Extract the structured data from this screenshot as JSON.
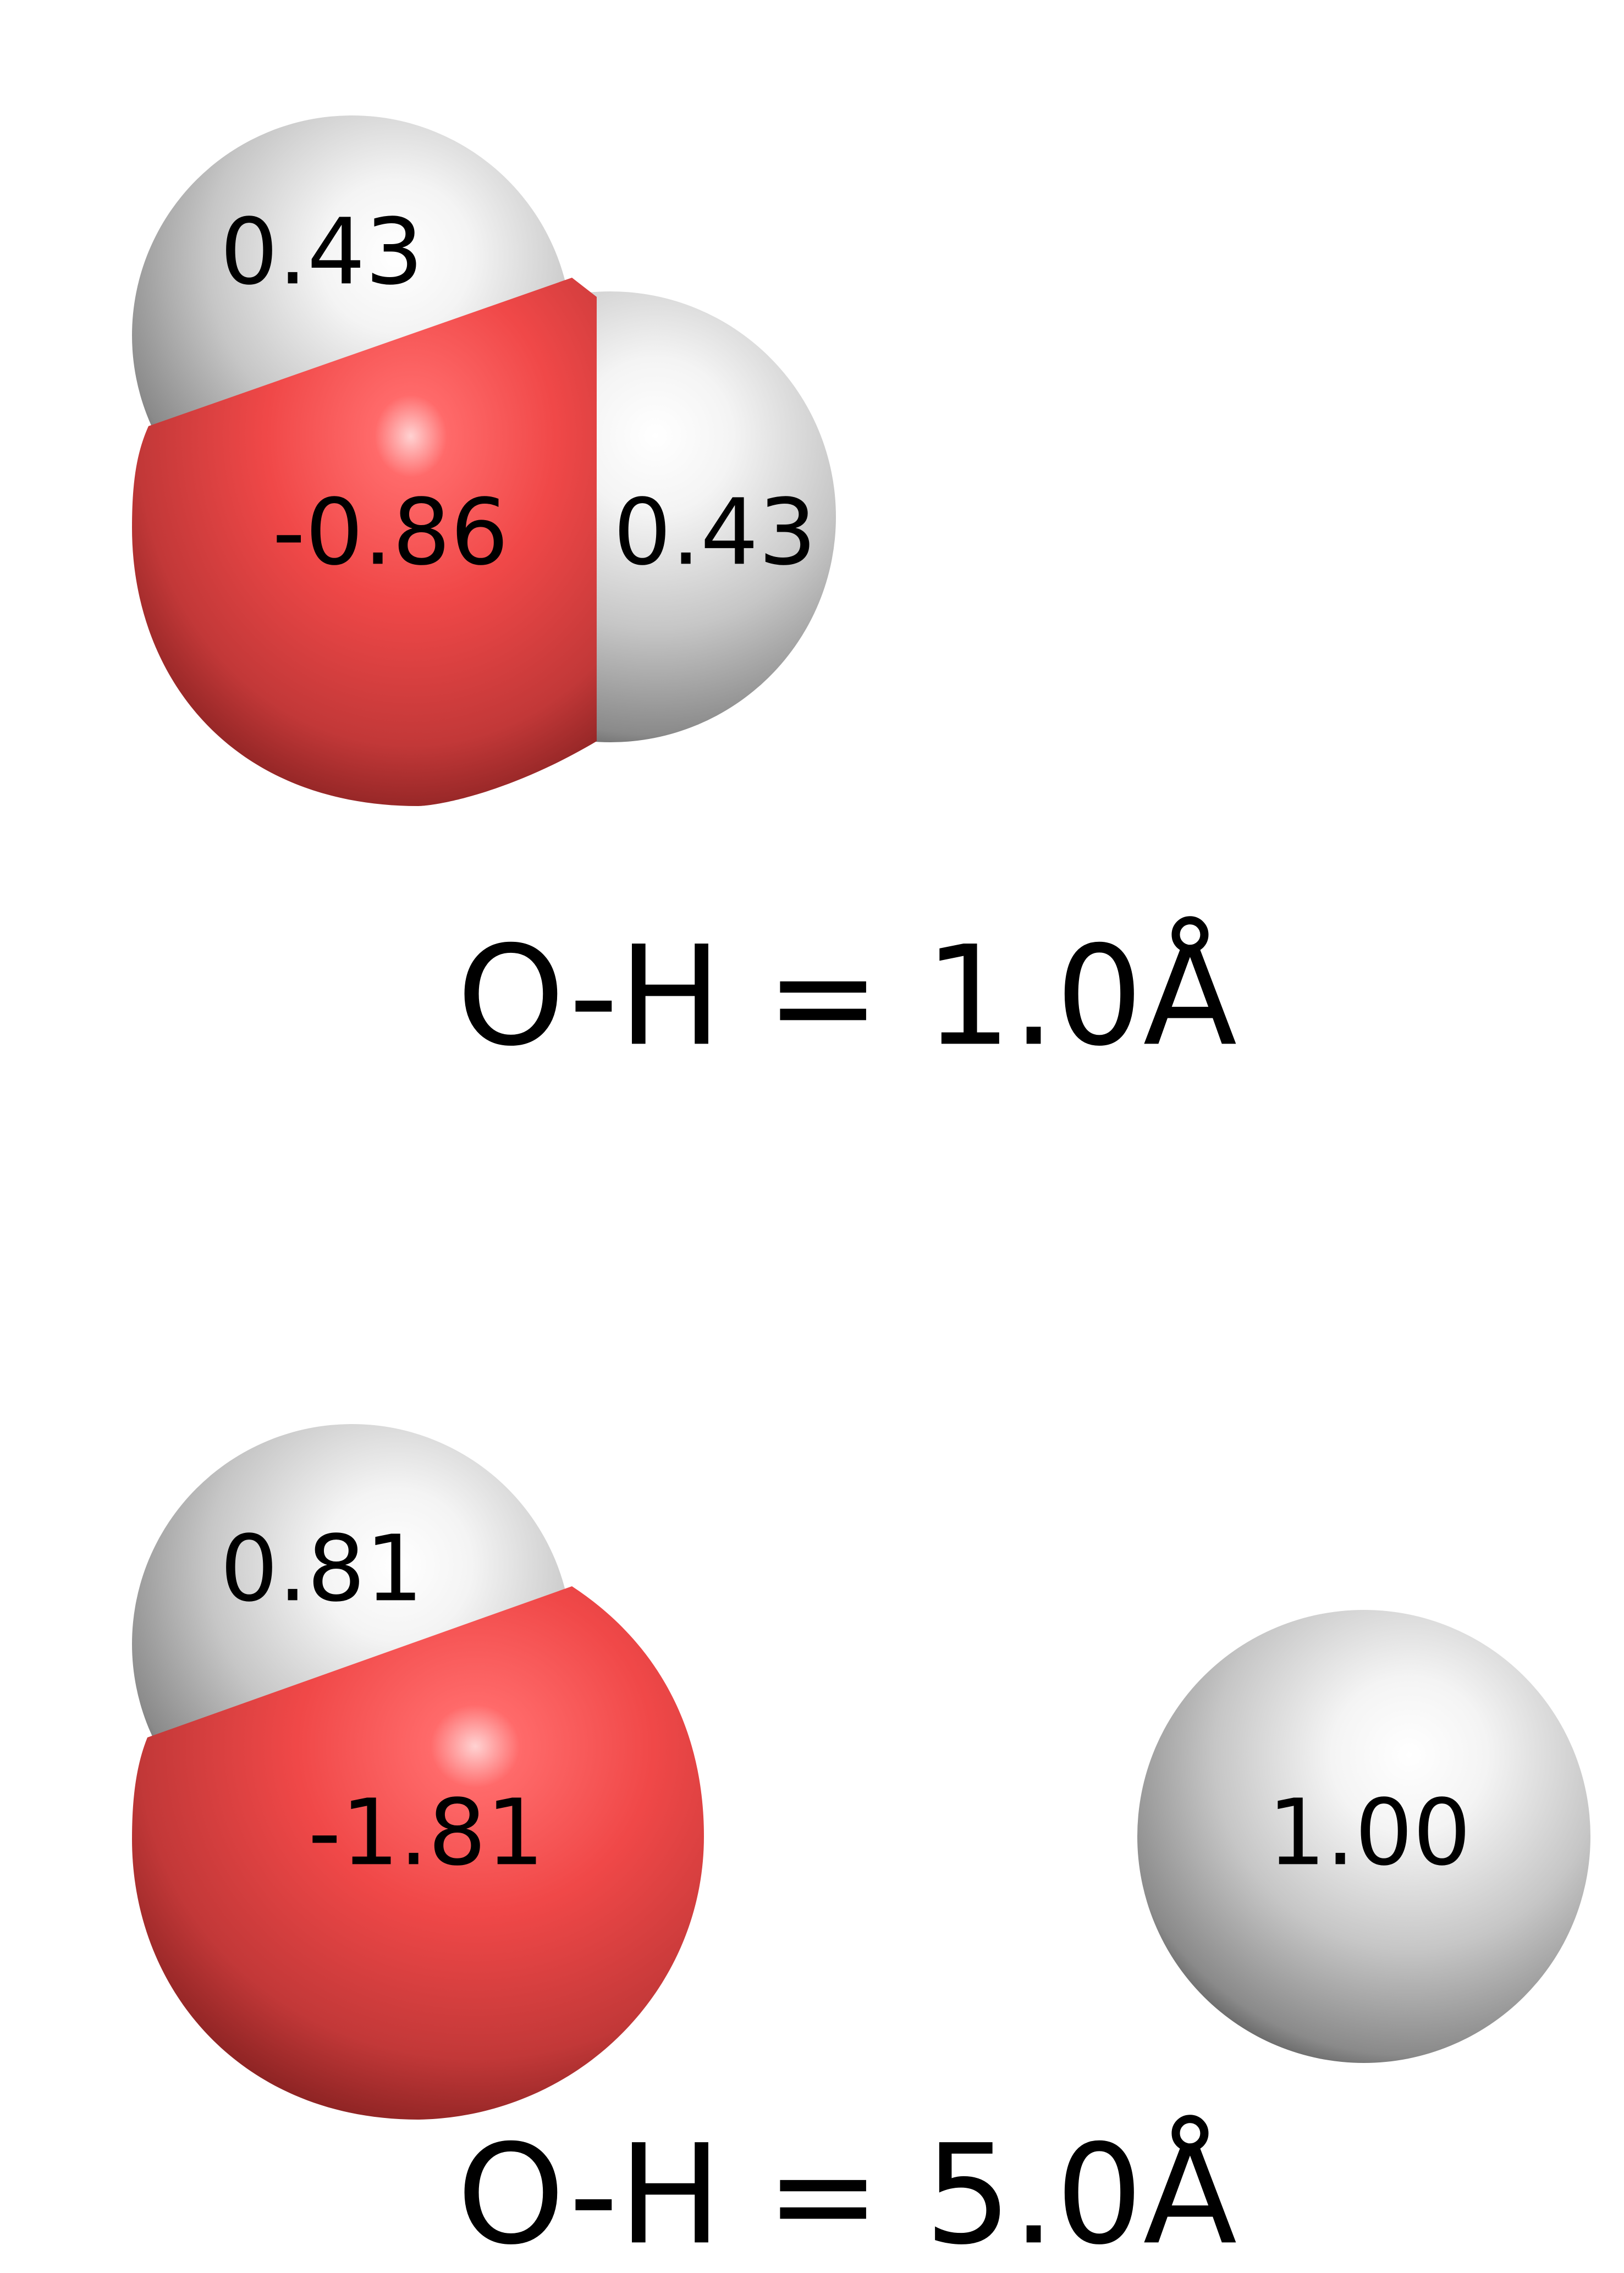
{
  "colors": {
    "oxygen": "#e84545",
    "hydrogen": "#d8d8d8",
    "background": "#ffffff",
    "text": "#000000"
  },
  "panels": [
    {
      "caption": "O-H = 1.0Å",
      "atoms": [
        {
          "element": "H",
          "charge": "0.43"
        },
        {
          "element": "O",
          "charge": "-0.86"
        },
        {
          "element": "H",
          "charge": "0.43"
        }
      ]
    },
    {
      "caption": "O-H = 5.0Å",
      "atoms": [
        {
          "element": "H",
          "charge": "0.81"
        },
        {
          "element": "O",
          "charge": "-1.81"
        },
        {
          "element": "H",
          "charge": "1.00"
        }
      ]
    }
  ]
}
